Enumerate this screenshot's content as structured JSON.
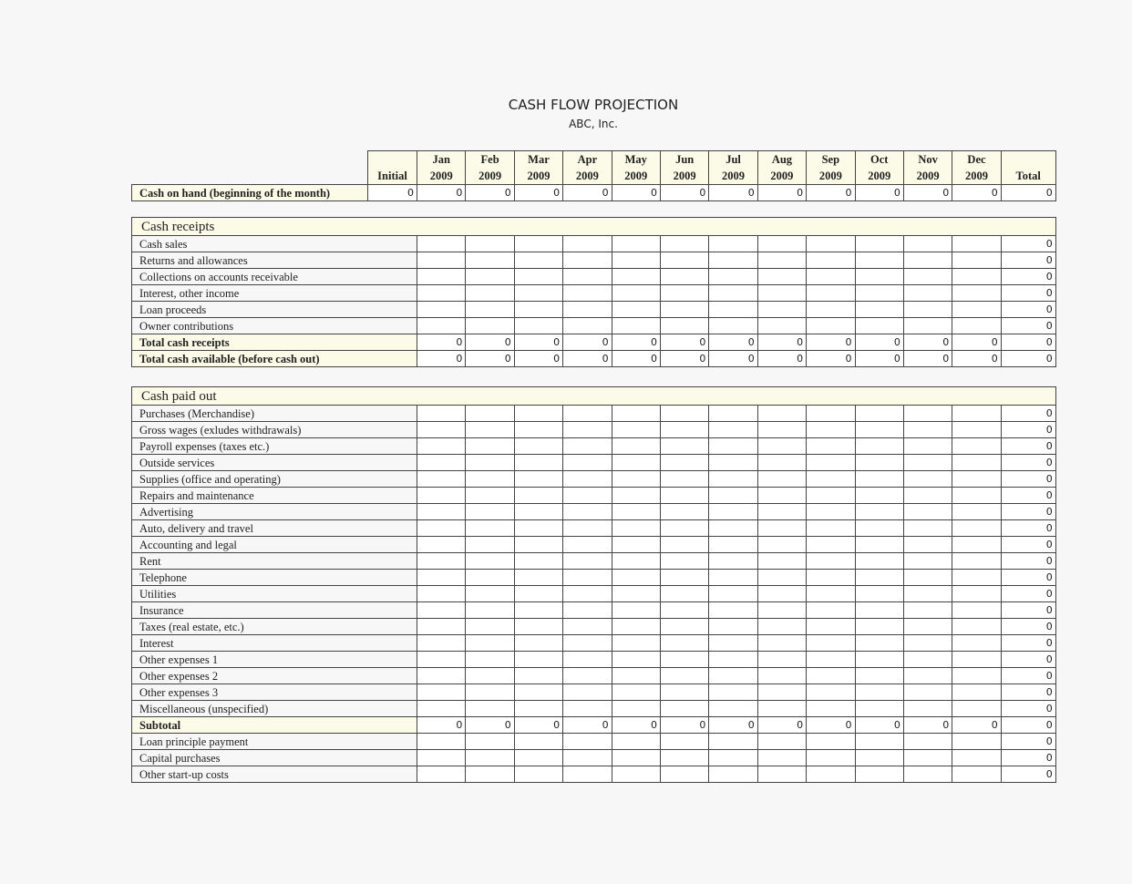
{
  "title": "CASH FLOW PROJECTION",
  "company": "ABC, Inc.",
  "columns": {
    "initial": "Initial",
    "months": [
      [
        "Jan",
        "2009"
      ],
      [
        "Feb",
        "2009"
      ],
      [
        "Mar",
        "2009"
      ],
      [
        "Apr",
        "2009"
      ],
      [
        "May",
        "2009"
      ],
      [
        "Jun",
        "2009"
      ],
      [
        "Jul",
        "2009"
      ],
      [
        "Aug",
        "2009"
      ],
      [
        "Sep",
        "2009"
      ],
      [
        "Oct",
        "2009"
      ],
      [
        "Nov",
        "2009"
      ],
      [
        "Dec",
        "2009"
      ]
    ],
    "total": "Total"
  },
  "cash_on_hand": {
    "label": "Cash on hand (beginning of the month)",
    "values": [
      "0",
      "0",
      "0",
      "0",
      "0",
      "0",
      "0",
      "0",
      "0",
      "0",
      "0",
      "0",
      "0",
      "0"
    ]
  },
  "receipts": {
    "heading": "Cash receipts",
    "rows": [
      {
        "label": "Cash sales",
        "total": "0"
      },
      {
        "label": "Returns and allowances",
        "total": "0"
      },
      {
        "label": "Collections on accounts receivable",
        "total": "0"
      },
      {
        "label": "Interest, other income",
        "total": "0"
      },
      {
        "label": "Loan proceeds",
        "total": "0"
      },
      {
        "label": "Owner contributions",
        "total": "0"
      },
      {
        "label": "Total cash receipts",
        "bold": true,
        "values": [
          "0",
          "0",
          "0",
          "0",
          "0",
          "0",
          "0",
          "0",
          "0",
          "0",
          "0",
          "0"
        ],
        "total": "0"
      },
      {
        "label": "Total cash available (before cash out)",
        "bold": true,
        "values": [
          "0",
          "0",
          "0",
          "0",
          "0",
          "0",
          "0",
          "0",
          "0",
          "0",
          "0",
          "0"
        ],
        "total": "0"
      }
    ]
  },
  "paid_out": {
    "heading": "Cash paid out",
    "rows": [
      {
        "label": "Purchases (Merchandise)",
        "total": "0"
      },
      {
        "label": "Gross wages (exludes withdrawals)",
        "total": "0"
      },
      {
        "label": "Payroll expenses (taxes etc.)",
        "total": "0"
      },
      {
        "label": "Outside services",
        "total": "0"
      },
      {
        "label": "Supplies (office and operating)",
        "total": "0"
      },
      {
        "label": "Repairs and maintenance",
        "total": "0"
      },
      {
        "label": "Advertising",
        "total": "0"
      },
      {
        "label": "Auto, delivery and travel",
        "total": "0"
      },
      {
        "label": "Accounting and legal",
        "total": "0"
      },
      {
        "label": "Rent",
        "total": "0"
      },
      {
        "label": "Telephone",
        "total": "0"
      },
      {
        "label": "Utilities",
        "total": "0"
      },
      {
        "label": "Insurance",
        "total": "0"
      },
      {
        "label": "Taxes (real estate, etc.)",
        "total": "0"
      },
      {
        "label": "Interest",
        "total": "0"
      },
      {
        "label": "Other expenses 1",
        "total": "0"
      },
      {
        "label": "Other expenses 2",
        "total": "0"
      },
      {
        "label": "Other expenses 3",
        "total": "0"
      },
      {
        "label": "Miscellaneous (unspecified)",
        "total": "0"
      },
      {
        "label": "Subtotal",
        "bold": true,
        "values": [
          "0",
          "0",
          "0",
          "0",
          "0",
          "0",
          "0",
          "0",
          "0",
          "0",
          "0",
          "0"
        ],
        "total": "0"
      },
      {
        "label": "Loan principle payment",
        "total": "0"
      },
      {
        "label": "Capital purchases",
        "total": "0"
      },
      {
        "label": "Other start-up costs",
        "total": "0"
      }
    ]
  }
}
